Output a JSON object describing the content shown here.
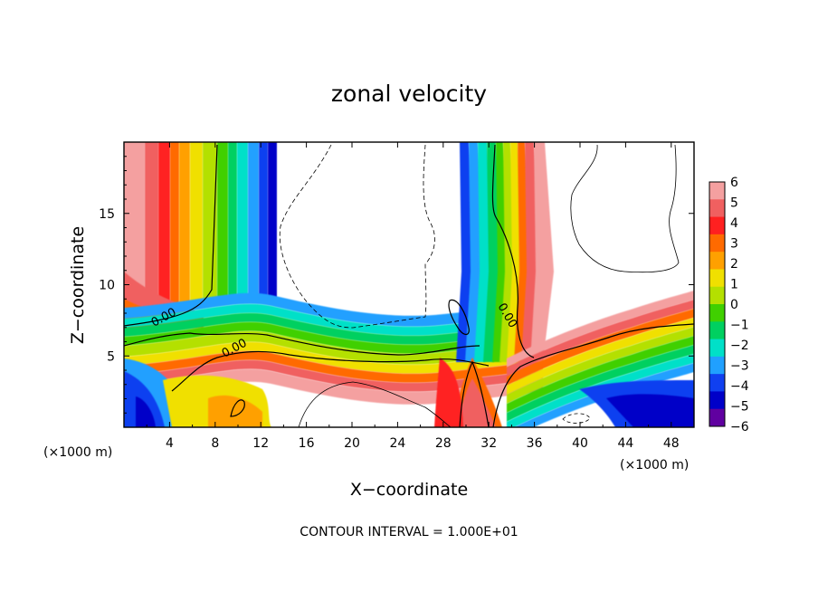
{
  "chart_data": {
    "type": "heatmap",
    "title": "zonal velocity",
    "xlabel": "X−coordinate",
    "ylabel": "Z−coordinate",
    "xunit_left": "(×1000 m)",
    "xunit_right": "(×1000 m)",
    "xlim": [
      0,
      50
    ],
    "ylim": [
      0,
      20
    ],
    "x_ticks": [
      4,
      8,
      12,
      16,
      20,
      24,
      28,
      32,
      36,
      40,
      44,
      48
    ],
    "y_ticks": [
      5,
      10,
      15
    ],
    "colorbar": {
      "ticks": [
        6,
        5,
        4,
        3,
        2,
        1,
        0,
        -1,
        -2,
        -3,
        -4,
        -5,
        -6
      ],
      "tick_labels": [
        "6",
        "5",
        "4",
        "3",
        "2",
        "1",
        "0",
        "−1",
        "−2",
        "−3",
        "−4",
        "−5",
        "−6"
      ],
      "colors": [
        "#f4a0a0",
        "#f06060",
        "#ff2020",
        "#ff6a00",
        "#ffa000",
        "#f0e000",
        "#b4e000",
        "#40d000",
        "#00d060",
        "#00e0c8",
        "#20a0ff",
        "#1040f0",
        "#0000c8",
        "#6000a0"
      ]
    },
    "contour_labels": [
      "0.00",
      "0.00",
      "0.00"
    ],
    "contour_interval_text": "CONTOUR INTERVAL = 1.000E+01"
  }
}
